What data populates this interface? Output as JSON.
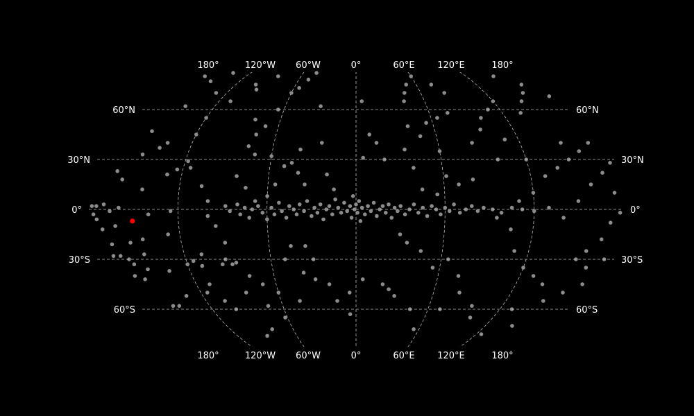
{
  "chart_data": {
    "type": "scatter",
    "projection": "elliptical all-sky (Mollweide-like), straight parallels",
    "background_color": "#000000",
    "grid": true,
    "grid_style": "dashed",
    "grid_color": "#bbbbbb",
    "point_color": "#8c8c8c",
    "highlight_color": "#ff0000",
    "xlim": [
      -180,
      180
    ],
    "ylim": [
      -90,
      90
    ],
    "meridian_labels": [
      {
        "lon": -180,
        "label": "180°"
      },
      {
        "lon": -120,
        "label": "120°W"
      },
      {
        "lon": -60,
        "label": "60°W"
      },
      {
        "lon": 0,
        "label": "0°"
      },
      {
        "lon": 60,
        "label": "60°E"
      },
      {
        "lon": 120,
        "label": "120°E"
      },
      {
        "lon": 180,
        "label": "180°"
      }
    ],
    "parallel_labels": [
      {
        "lat": 60,
        "label": "60°N"
      },
      {
        "lat": 30,
        "label": "30°N"
      },
      {
        "lat": 0,
        "label": "0°"
      },
      {
        "lat": -30,
        "label": "30°S"
      },
      {
        "lat": -60,
        "label": "60°S"
      }
    ],
    "highlight_point": [
      -151,
      -7
    ],
    "points": [
      [
        -178,
        2
      ],
      [
        -177,
        -3
      ],
      [
        -175,
        -6
      ],
      [
        -172,
        -12
      ],
      [
        -168,
        -21
      ],
      [
        -165,
        -28
      ],
      [
        -170,
        -28
      ],
      [
        -160,
        -30
      ],
      [
        -158,
        -33
      ],
      [
        -162,
        -40
      ],
      [
        -156,
        -42
      ],
      [
        -150,
        -36
      ],
      [
        -148,
        -27
      ],
      [
        -146,
        -18
      ],
      [
        -155,
        -20
      ],
      [
        -163,
        -10
      ],
      [
        -166,
        -1
      ],
      [
        -160,
        1
      ],
      [
        -140,
        -3
      ],
      [
        -145,
        12
      ],
      [
        -160,
        18
      ],
      [
        -165,
        23
      ],
      [
        -152,
        33
      ],
      [
        -155,
        47
      ],
      [
        -138,
        40
      ],
      [
        -142,
        37
      ],
      [
        -175,
        2
      ],
      [
        -170,
        3
      ],
      [
        -128,
        -15
      ],
      [
        -135,
        -37
      ],
      [
        -120,
        -33
      ],
      [
        -133,
        -52
      ],
      [
        -150,
        -58
      ],
      [
        -125,
        -1
      ],
      [
        -130,
        21
      ],
      [
        -124,
        24
      ],
      [
        -118,
        29
      ],
      [
        -145,
        -58
      ],
      [
        -115,
        -31
      ],
      [
        -110,
        -34
      ],
      [
        -108,
        -27
      ],
      [
        -165,
        80
      ],
      [
        -150,
        77
      ],
      [
        -140,
        82
      ],
      [
        -130,
        70
      ],
      [
        -145,
        62
      ],
      [
        -120,
        55
      ],
      [
        -110,
        65
      ],
      [
        -100,
        75
      ],
      [
        -95,
        72
      ],
      [
        -85,
        80
      ],
      [
        -120,
        45
      ],
      [
        -115,
        25
      ],
      [
        -105,
        14
      ],
      [
        -100,
        5
      ],
      [
        -100,
        -4
      ],
      [
        -95,
        -10
      ],
      [
        -90,
        -20
      ],
      [
        -95,
        -33
      ],
      [
        -110,
        -45
      ],
      [
        -105,
        -55
      ],
      [
        -100,
        -60
      ],
      [
        -115,
        -50
      ],
      [
        -92,
        -30
      ],
      [
        -88,
        -33
      ],
      [
        -85,
        -32
      ],
      [
        -80,
        54
      ],
      [
        -75,
        45
      ],
      [
        -70,
        50
      ],
      [
        -65,
        60
      ],
      [
        -60,
        70
      ],
      [
        -55,
        73
      ],
      [
        -50,
        78
      ],
      [
        -45,
        82
      ],
      [
        -30,
        62
      ],
      [
        -25,
        40
      ],
      [
        -40,
        36
      ],
      [
        -45,
        28
      ],
      [
        -50,
        26
      ],
      [
        -60,
        32
      ],
      [
        -72,
        33
      ],
      [
        -78,
        38
      ],
      [
        -82,
        20
      ],
      [
        -75,
        13
      ],
      [
        -68,
        5
      ],
      [
        -60,
        8
      ],
      [
        -55,
        15
      ],
      [
        -40,
        22
      ],
      [
        -35,
        15
      ],
      [
        -20,
        21
      ],
      [
        -15,
        12
      ],
      [
        -30,
        -30
      ],
      [
        -35,
        -22
      ],
      [
        -45,
        -22
      ],
      [
        -50,
        -30
      ],
      [
        -38,
        -38
      ],
      [
        -30,
        -42
      ],
      [
        -20,
        -45
      ],
      [
        -15,
        -55
      ],
      [
        -45,
        -55
      ],
      [
        -60,
        -50
      ],
      [
        -70,
        -45
      ],
      [
        -78,
        -40
      ],
      [
        -72,
        -58
      ],
      [
        -62,
        -65
      ],
      [
        -80,
        -72
      ],
      [
        -90,
        -76
      ],
      [
        -85,
        -50
      ],
      [
        5,
        65
      ],
      [
        10,
        45
      ],
      [
        5,
        31
      ],
      [
        15,
        40
      ],
      [
        20,
        30
      ],
      [
        35,
        36
      ],
      [
        40,
        50
      ],
      [
        42,
        65
      ],
      [
        45,
        70
      ],
      [
        50,
        75
      ],
      [
        60,
        80
      ],
      [
        75,
        75
      ],
      [
        82,
        70
      ],
      [
        75,
        58
      ],
      [
        65,
        55
      ],
      [
        55,
        52
      ],
      [
        48,
        44
      ],
      [
        60,
        35
      ],
      [
        62,
        20
      ],
      [
        40,
        25
      ],
      [
        45,
        12
      ],
      [
        55,
        9
      ],
      [
        70,
        15
      ],
      [
        80,
        18
      ],
      [
        85,
        40
      ],
      [
        95,
        48
      ],
      [
        100,
        55
      ],
      [
        30,
        -15
      ],
      [
        35,
        -20
      ],
      [
        45,
        -25
      ],
      [
        55,
        -35
      ],
      [
        65,
        -30
      ],
      [
        75,
        -40
      ],
      [
        80,
        -50
      ],
      [
        70,
        -60
      ],
      [
        55,
        -72
      ],
      [
        45,
        -60
      ],
      [
        20,
        -45
      ],
      [
        25,
        -48
      ],
      [
        30,
        -52
      ],
      [
        5,
        -42
      ],
      [
        -5,
        -50
      ],
      [
        -5,
        -63
      ],
      [
        95,
        -58
      ],
      [
        100,
        -65
      ],
      [
        110,
        60
      ],
      [
        120,
        65
      ],
      [
        135,
        58
      ],
      [
        145,
        65
      ],
      [
        155,
        70
      ],
      [
        150,
        80
      ],
      [
        165,
        75
      ],
      [
        175,
        68
      ],
      [
        170,
        40
      ],
      [
        160,
        35
      ],
      [
        150,
        30
      ],
      [
        140,
        25
      ],
      [
        130,
        20
      ],
      [
        120,
        30
      ],
      [
        110,
        42
      ],
      [
        100,
        30
      ],
      [
        175,
        10
      ],
      [
        178,
        -2
      ],
      [
        172,
        -8
      ],
      [
        168,
        -18
      ],
      [
        160,
        -25
      ],
      [
        155,
        -30
      ],
      [
        165,
        -35
      ],
      [
        175,
        -30
      ],
      [
        170,
        -45
      ],
      [
        160,
        -50
      ],
      [
        150,
        -55
      ],
      [
        140,
        -45
      ],
      [
        130,
        -40
      ],
      [
        120,
        -35
      ],
      [
        110,
        -25
      ],
      [
        105,
        -12
      ],
      [
        95,
        -5
      ],
      [
        140,
        -5
      ],
      [
        150,
        5
      ],
      [
        160,
        15
      ],
      [
        170,
        22
      ],
      [
        178,
        28
      ],
      [
        130,
        -60
      ],
      [
        145,
        -70
      ],
      [
        125,
        -75
      ],
      [
        120,
        10
      ],
      [
        110,
        5
      ],
      [
        150,
        40
      ],
      [
        -88,
        2
      ],
      [
        -85,
        -1
      ],
      [
        -80,
        3
      ],
      [
        -78,
        -3
      ],
      [
        -75,
        1
      ],
      [
        -72,
        -5
      ],
      [
        -70,
        0
      ],
      [
        -66,
        2
      ],
      [
        -63,
        -2
      ],
      [
        -60,
        -6
      ],
      [
        -57,
        1
      ],
      [
        -55,
        -3
      ],
      [
        -52,
        4
      ],
      [
        -50,
        -1
      ],
      [
        -47,
        -5
      ],
      [
        -45,
        2
      ],
      [
        -42,
        0
      ],
      [
        -40,
        -3
      ],
      [
        -38,
        3
      ],
      [
        -35,
        -1
      ],
      [
        -33,
        5
      ],
      [
        -30,
        -4
      ],
      [
        -28,
        1
      ],
      [
        -26,
        -2
      ],
      [
        -24,
        3
      ],
      [
        -22,
        -6
      ],
      [
        -20,
        0
      ],
      [
        -18,
        2
      ],
      [
        -16,
        -3
      ],
      [
        -14,
        6
      ],
      [
        -12,
        1
      ],
      [
        -10,
        -2
      ],
      [
        -8,
        4
      ],
      [
        -6,
        -1
      ],
      [
        -4,
        2
      ],
      [
        -3,
        -5
      ],
      [
        -2,
        8
      ],
      [
        -1,
        0
      ],
      [
        0,
        3
      ],
      [
        1,
        -2
      ],
      [
        2,
        5
      ],
      [
        3,
        -7
      ],
      [
        4,
        1
      ],
      [
        6,
        -3
      ],
      [
        8,
        2
      ],
      [
        10,
        -1
      ],
      [
        12,
        4
      ],
      [
        14,
        -4
      ],
      [
        16,
        0
      ],
      [
        18,
        2
      ],
      [
        20,
        -2
      ],
      [
        22,
        3
      ],
      [
        24,
        -5
      ],
      [
        26,
        1
      ],
      [
        28,
        -1
      ],
      [
        30,
        2
      ],
      [
        33,
        -3
      ],
      [
        36,
        0
      ],
      [
        39,
        3
      ],
      [
        42,
        -2
      ],
      [
        45,
        1
      ],
      [
        48,
        -4
      ],
      [
        51,
        2
      ],
      [
        54,
        0
      ],
      [
        57,
        -3
      ],
      [
        60,
        1
      ],
      [
        63,
        -1
      ],
      [
        66,
        3
      ],
      [
        70,
        -2
      ],
      [
        74,
        0
      ],
      [
        78,
        2
      ],
      [
        82,
        -1
      ],
      [
        86,
        1
      ],
      [
        92,
        0
      ],
      [
        98,
        -2
      ],
      [
        105,
        1
      ],
      [
        112,
        0
      ],
      [
        120,
        -1
      ],
      [
        130,
        1
      ]
    ]
  }
}
